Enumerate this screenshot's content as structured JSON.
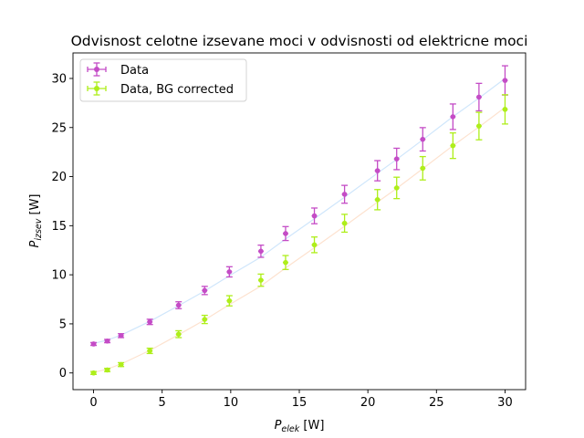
{
  "chart_data": {
    "type": "scatter",
    "title": "Odvisnost celotne izsevane moci v odvisnosti od elektricne moci",
    "xlabel": {
      "main": "P",
      "sub": "elek",
      "unit": " [W]"
    },
    "ylabel": {
      "main": "P",
      "sub": "izsev",
      "unit": " [W]"
    },
    "xlim": [
      -1.5,
      31.5
    ],
    "ylim": [
      -1.7,
      32.6
    ],
    "xticks": [
      0,
      5,
      10,
      15,
      20,
      25,
      30
    ],
    "yticks": [
      0,
      5,
      10,
      15,
      20,
      25,
      30
    ],
    "grid": false,
    "legend_position": "top-left",
    "series": [
      {
        "name": "Data",
        "color": "#c44cc6",
        "fit_color": "#cfe6fb",
        "x": [
          0.0,
          1.0,
          2.0,
          4.1,
          6.2,
          8.1,
          9.9,
          12.2,
          14.0,
          16.1,
          18.3,
          20.7,
          22.1,
          24.0,
          26.2,
          28.1,
          30.0
        ],
        "y": [
          2.95,
          3.25,
          3.8,
          5.2,
          6.9,
          8.4,
          10.3,
          12.4,
          14.2,
          16.0,
          18.2,
          20.6,
          21.8,
          23.8,
          26.1,
          28.1,
          29.8
        ],
        "yerr": [
          0.15,
          0.17,
          0.2,
          0.27,
          0.35,
          0.42,
          0.52,
          0.62,
          0.71,
          0.8,
          0.91,
          1.03,
          1.09,
          1.19,
          1.3,
          1.4,
          1.49
        ],
        "fit_y": [
          3.0,
          3.35,
          3.85,
          5.25,
          6.85,
          8.35,
          9.9,
          11.8,
          13.65,
          15.7,
          17.9,
          20.35,
          21.75,
          23.75,
          26.1,
          28.0,
          30.0
        ]
      },
      {
        "name": "Data, BG corrected",
        "color": "#aeee1a",
        "fit_color": "#fde2cf",
        "x": [
          0.0,
          1.0,
          2.0,
          4.1,
          6.2,
          8.1,
          9.9,
          12.2,
          14.0,
          16.1,
          18.3,
          20.7,
          22.1,
          24.0,
          26.2,
          28.1,
          30.0
        ],
        "y": [
          0.0,
          0.3,
          0.85,
          2.25,
          3.95,
          5.45,
          7.35,
          9.45,
          11.25,
          13.05,
          15.25,
          17.65,
          18.85,
          20.85,
          23.15,
          25.15,
          26.85
        ],
        "yerr": [
          0.15,
          0.17,
          0.2,
          0.27,
          0.35,
          0.42,
          0.52,
          0.62,
          0.71,
          0.8,
          0.91,
          1.03,
          1.09,
          1.19,
          1.3,
          1.4,
          1.49
        ],
        "fit_y": [
          0.05,
          0.4,
          0.9,
          2.3,
          3.9,
          5.4,
          6.95,
          8.85,
          10.7,
          12.75,
          14.95,
          17.4,
          18.8,
          20.8,
          23.15,
          25.05,
          27.05
        ]
      }
    ]
  }
}
